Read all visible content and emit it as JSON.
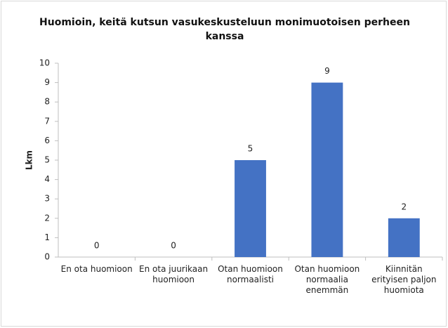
{
  "chart_data": {
    "type": "bar",
    "title": "Huomioin, keitä kutsun vasukeskusteluun monimuotoisen perheen kanssa",
    "y_label": "Lkm",
    "categories": [
      "En ota huomioon",
      "En ota juurikaan huomioon",
      "Otan huomioon normaalisti",
      "Otan huomioon normaalia enemmän",
      "Kiinnitän erityisen paljon huomiota"
    ],
    "values": [
      0,
      0,
      5,
      9,
      2
    ],
    "color": "#4472c4",
    "ylim": [
      0,
      10
    ],
    "yticks": [
      0,
      1,
      2,
      3,
      4,
      5,
      6,
      7,
      8,
      9,
      10
    ],
    "grid": false
  }
}
